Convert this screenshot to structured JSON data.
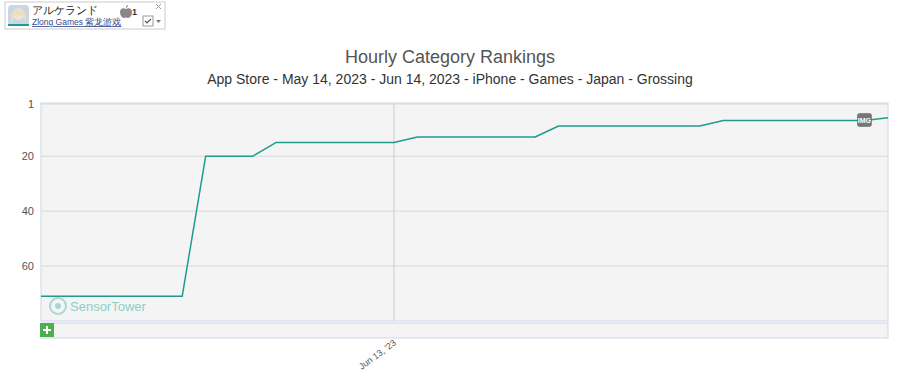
{
  "chart_data": {
    "type": "line",
    "title": "Hourly Category Rankings",
    "subtitle": "App Store - May 14, 2023 - Jun 14, 2023 - iPhone - Games - Japan - Grossing",
    "categories": [
      null,
      null,
      null,
      null,
      null,
      null,
      null,
      null,
      null,
      null,
      null,
      null,
      null,
      null,
      null,
      "Jun 13, '23",
      null,
      null,
      null,
      null,
      null,
      null,
      null,
      null,
      null,
      null,
      null,
      null,
      null,
      null,
      null,
      null,
      null,
      null,
      null,
      null,
      null
    ],
    "series": [
      {
        "name": "アルケランド",
        "color": "#1f9c8c",
        "values": [
          71,
          71,
          71,
          71,
          71,
          71,
          71,
          20,
          20,
          20,
          15,
          15,
          15,
          15,
          15,
          15,
          13,
          13,
          13,
          13,
          13,
          13,
          9,
          9,
          9,
          9,
          9,
          9,
          9,
          7,
          7,
          7,
          7,
          7,
          7,
          7,
          6
        ]
      }
    ],
    "developer": "Zlong Games 紫龙游戏",
    "badge": 1,
    "annotation": "IMG",
    "watermark": "SensorTower",
    "ylim": [
      80,
      1
    ],
    "yticks": [
      1,
      20,
      40,
      60
    ],
    "grid": true,
    "legend": "top-left"
  }
}
